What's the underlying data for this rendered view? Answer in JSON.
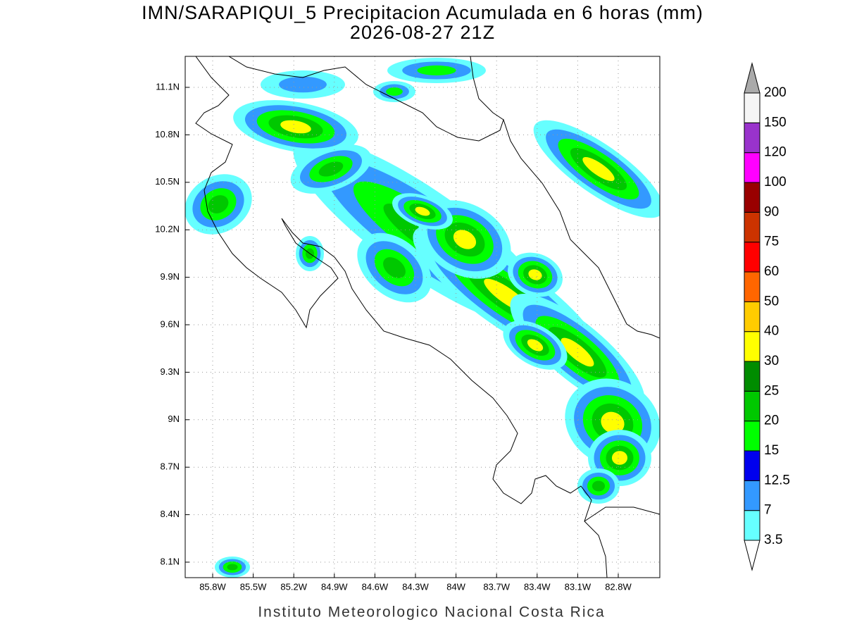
{
  "title": "IMN/SARAPIQUI_5 Precipitacion Acumulada en 6 horas (mm)",
  "subtitle": "2026-08-27 21Z",
  "map": {
    "lat_labels": [
      "11.1N",
      "10.8N",
      "10.5N",
      "10.2N",
      "9.9N",
      "9.6N",
      "9.3N",
      "9N",
      "8.7N",
      "8.4N",
      "8.1N"
    ],
    "lon_labels": [
      "85.8W",
      "85.5W",
      "85.2W",
      "84.9W",
      "84.6W",
      "84.3W",
      "84W",
      "83.7W",
      "83.4W",
      "83.1W",
      "82.8W"
    ]
  },
  "colorbar": {
    "levels": [
      3.5,
      7,
      12.5,
      15,
      20,
      25,
      30,
      40,
      50,
      60,
      75,
      90,
      100,
      120,
      150,
      200
    ],
    "colors": [
      "#66ffff",
      "#3399ff",
      "#0000ee",
      "#00ff00",
      "#00c800",
      "#008c00",
      "#ffff00",
      "#ffcc00",
      "#ff6600",
      "#ff0000",
      "#cc3300",
      "#990000",
      "#ff00ff",
      "#9933cc",
      "#f5f5f5"
    ],
    "under_color": "#ffffff",
    "over_color": "#aaaaaa"
  },
  "footer": "Instituto Meteorologico Nacional Costa Rica"
}
